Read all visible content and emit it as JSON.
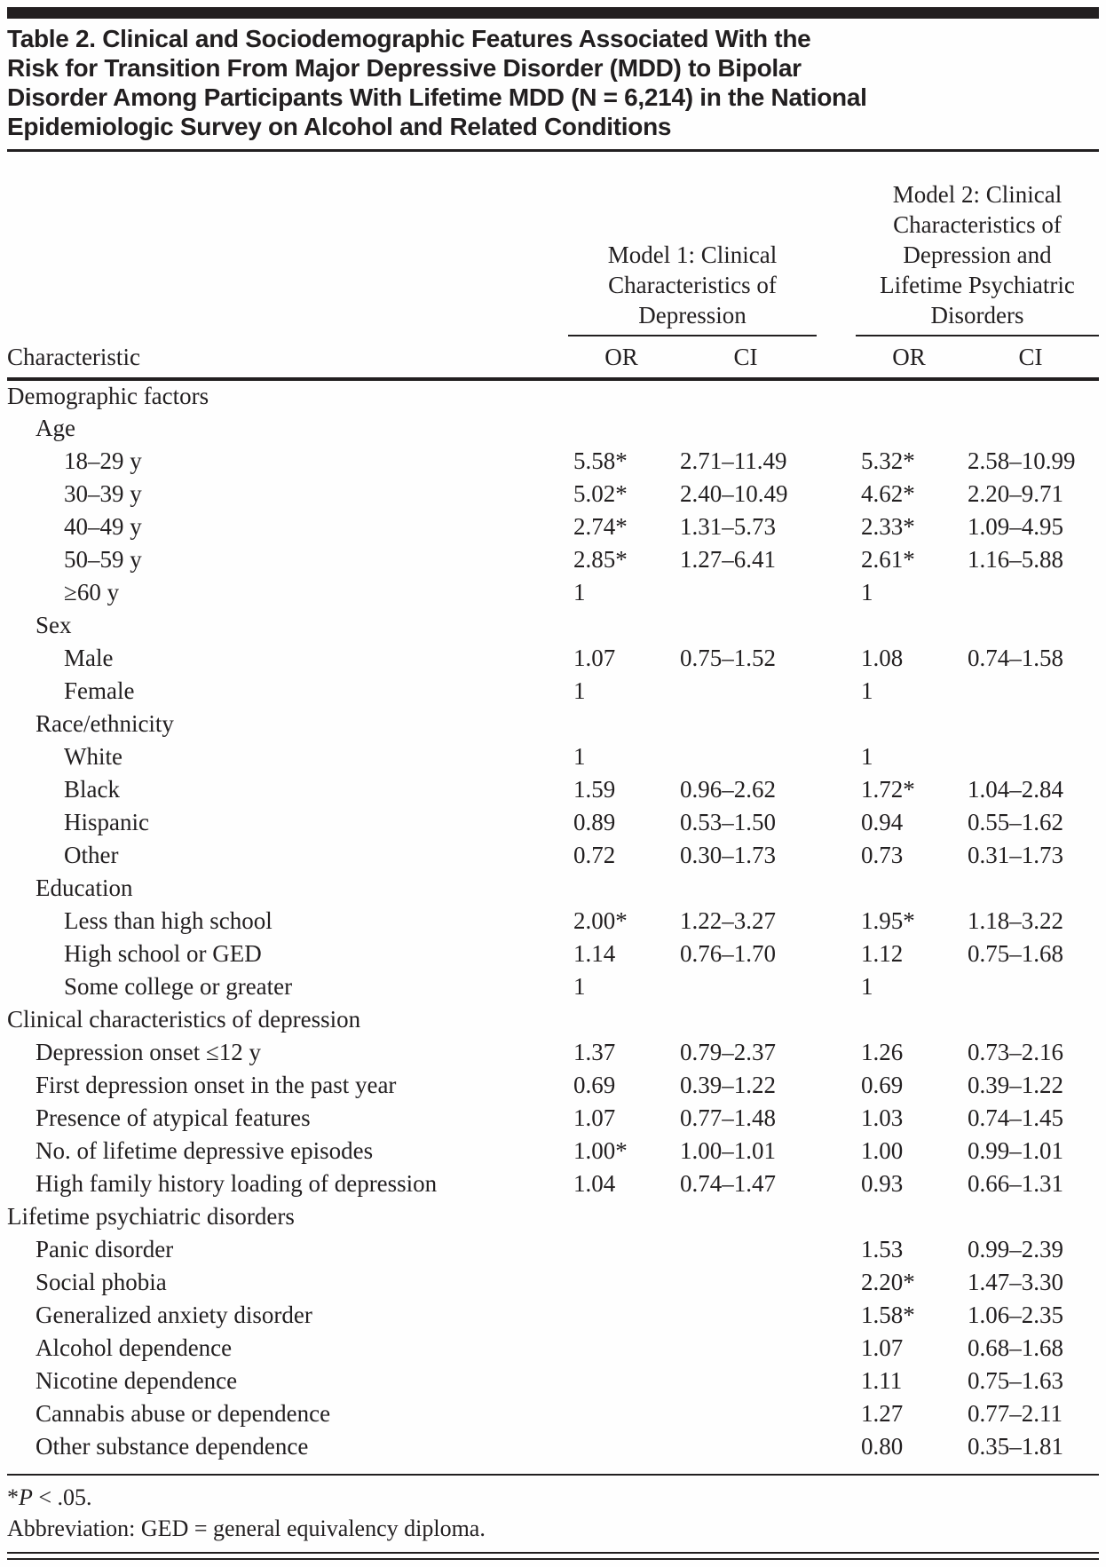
{
  "title_lines": [
    "Table 2. Clinical and Sociodemographic Features Associated With the",
    "Risk for Transition From Major Depressive Disorder (MDD) to Bipolar",
    "Disorder Among Participants With Lifetime MDD (N = 6,214) in the National",
    "Epidemiologic Survey on Alcohol and Related Conditions"
  ],
  "header": {
    "characteristic_label": "Characteristic",
    "model1_lines": [
      "Model 1: Clinical",
      "Characteristics of",
      "Depression"
    ],
    "model2_lines": [
      "Model 2: Clinical",
      "Characteristics of",
      "Depression and",
      "Lifetime Psychiatric",
      "Disorders"
    ],
    "columns": [
      "OR",
      "CI",
      "OR",
      "CI"
    ]
  },
  "rows": [
    {
      "label": "Demographic factors",
      "indent": 0,
      "m1_or": "",
      "m1_ci": "",
      "m2_or": "",
      "m2_ci": ""
    },
    {
      "label": "Age",
      "indent": 1,
      "m1_or": "",
      "m1_ci": "",
      "m2_or": "",
      "m2_ci": ""
    },
    {
      "label": "18–29 y",
      "indent": 2,
      "m1_or": "5.58*",
      "m1_ci": "2.71–11.49",
      "m2_or": "5.32*",
      "m2_ci": "2.58–10.99"
    },
    {
      "label": "30–39 y",
      "indent": 2,
      "m1_or": "5.02*",
      "m1_ci": "2.40–10.49",
      "m2_or": "4.62*",
      "m2_ci": "2.20–9.71"
    },
    {
      "label": "40–49 y",
      "indent": 2,
      "m1_or": "2.74*",
      "m1_ci": "1.31–5.73",
      "m2_or": "2.33*",
      "m2_ci": "1.09–4.95"
    },
    {
      "label": "50–59 y",
      "indent": 2,
      "m1_or": "2.85*",
      "m1_ci": "1.27–6.41",
      "m2_or": "2.61*",
      "m2_ci": "1.16–5.88"
    },
    {
      "label": "≥60 y",
      "indent": 2,
      "m1_or": "1",
      "m1_ci": "",
      "m2_or": "1",
      "m2_ci": ""
    },
    {
      "label": "Sex",
      "indent": 1,
      "m1_or": "",
      "m1_ci": "",
      "m2_or": "",
      "m2_ci": ""
    },
    {
      "label": "Male",
      "indent": 2,
      "m1_or": "1.07",
      "m1_ci": "0.75–1.52",
      "m2_or": "1.08",
      "m2_ci": "0.74–1.58"
    },
    {
      "label": "Female",
      "indent": 2,
      "m1_or": "1",
      "m1_ci": "",
      "m2_or": "1",
      "m2_ci": ""
    },
    {
      "label": "Race/ethnicity",
      "indent": 1,
      "m1_or": "",
      "m1_ci": "",
      "m2_or": "",
      "m2_ci": ""
    },
    {
      "label": "White",
      "indent": 2,
      "m1_or": "1",
      "m1_ci": "",
      "m2_or": "1",
      "m2_ci": ""
    },
    {
      "label": "Black",
      "indent": 2,
      "m1_or": "1.59",
      "m1_ci": "0.96–2.62",
      "m2_or": "1.72*",
      "m2_ci": "1.04–2.84"
    },
    {
      "label": "Hispanic",
      "indent": 2,
      "m1_or": "0.89",
      "m1_ci": "0.53–1.50",
      "m2_or": "0.94",
      "m2_ci": "0.55–1.62"
    },
    {
      "label": "Other",
      "indent": 2,
      "m1_or": "0.72",
      "m1_ci": "0.30–1.73",
      "m2_or": "0.73",
      "m2_ci": "0.31–1.73"
    },
    {
      "label": "Education",
      "indent": 1,
      "m1_or": "",
      "m1_ci": "",
      "m2_or": "",
      "m2_ci": ""
    },
    {
      "label": "Less than high school",
      "indent": 2,
      "m1_or": "2.00*",
      "m1_ci": "1.22–3.27",
      "m2_or": "1.95*",
      "m2_ci": "1.18–3.22"
    },
    {
      "label": "High school or GED",
      "indent": 2,
      "m1_or": "1.14",
      "m1_ci": "0.76–1.70",
      "m2_or": "1.12",
      "m2_ci": "0.75–1.68"
    },
    {
      "label": "Some college or greater",
      "indent": 2,
      "m1_or": "1",
      "m1_ci": "",
      "m2_or": "1",
      "m2_ci": ""
    },
    {
      "label": "Clinical characteristics of depression",
      "indent": 0,
      "m1_or": "",
      "m1_ci": "",
      "m2_or": "",
      "m2_ci": ""
    },
    {
      "label": "Depression onset ≤12 y",
      "indent": 1,
      "m1_or": "1.37",
      "m1_ci": "0.79–2.37",
      "m2_or": "1.26",
      "m2_ci": "0.73–2.16"
    },
    {
      "label": "First depression onset in the past year",
      "indent": 1,
      "m1_or": "0.69",
      "m1_ci": "0.39–1.22",
      "m2_or": "0.69",
      "m2_ci": "0.39–1.22"
    },
    {
      "label": "Presence of atypical features",
      "indent": 1,
      "m1_or": "1.07",
      "m1_ci": "0.77–1.48",
      "m2_or": "1.03",
      "m2_ci": "0.74–1.45"
    },
    {
      "label": "No. of lifetime depressive episodes",
      "indent": 1,
      "m1_or": "1.00*",
      "m1_ci": "1.00–1.01",
      "m2_or": "1.00",
      "m2_ci": "0.99–1.01"
    },
    {
      "label": "High family history loading of depression",
      "indent": 1,
      "m1_or": "1.04",
      "m1_ci": "0.74–1.47",
      "m2_or": "0.93",
      "m2_ci": "0.66–1.31"
    },
    {
      "label": "Lifetime psychiatric disorders",
      "indent": 0,
      "m1_or": "",
      "m1_ci": "",
      "m2_or": "",
      "m2_ci": ""
    },
    {
      "label": "Panic disorder",
      "indent": 1,
      "m1_or": "",
      "m1_ci": "",
      "m2_or": "1.53",
      "m2_ci": "0.99–2.39"
    },
    {
      "label": "Social phobia",
      "indent": 1,
      "m1_or": "",
      "m1_ci": "",
      "m2_or": "2.20*",
      "m2_ci": "1.47–3.30"
    },
    {
      "label": "Generalized anxiety disorder",
      "indent": 1,
      "m1_or": "",
      "m1_ci": "",
      "m2_or": "1.58*",
      "m2_ci": "1.06–2.35"
    },
    {
      "label": "Alcohol dependence",
      "indent": 1,
      "m1_or": "",
      "m1_ci": "",
      "m2_or": "1.07",
      "m2_ci": "0.68–1.68"
    },
    {
      "label": "Nicotine dependence",
      "indent": 1,
      "m1_or": "",
      "m1_ci": "",
      "m2_or": "1.11",
      "m2_ci": "0.75–1.63"
    },
    {
      "label": "Cannabis abuse or dependence",
      "indent": 1,
      "m1_or": "",
      "m1_ci": "",
      "m2_or": "1.27",
      "m2_ci": "0.77–2.11"
    },
    {
      "label": "Other substance dependence",
      "indent": 1,
      "m1_or": "",
      "m1_ci": "",
      "m2_or": "0.80",
      "m2_ci": "0.35–1.81"
    }
  ],
  "footnotes": {
    "sig_star": "*",
    "sig_p": "P",
    "sig_rest": " < .05.",
    "abbreviation": "Abbreviation: GED = general equivalency diploma."
  },
  "colors": {
    "ink": "#221f20",
    "background": "#fefefe"
  }
}
